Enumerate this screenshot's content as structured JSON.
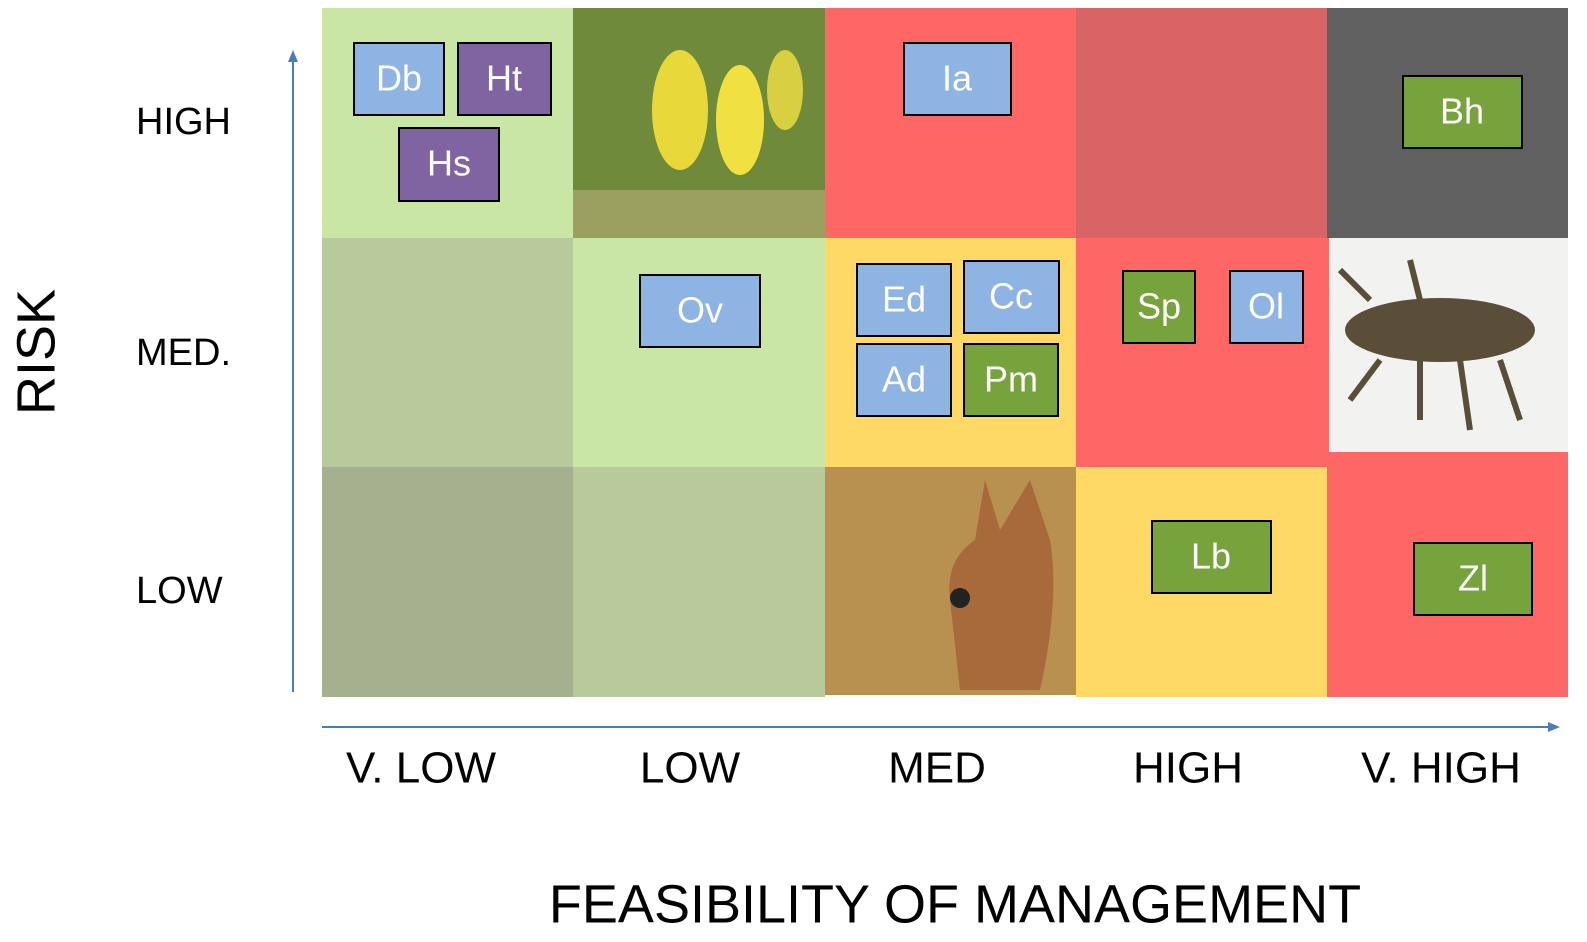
{
  "y_axis": {
    "title": "RISK",
    "labels": [
      "HIGH",
      "MED.",
      "LOW"
    ]
  },
  "x_axis": {
    "title": "FEASIBILITY OF MANAGEMENT",
    "labels": [
      "V. LOW",
      "LOW",
      "MED",
      "HIGH",
      "V. HIGH"
    ]
  },
  "species": [
    "Db",
    "Ht",
    "Hs",
    "Ia",
    "Bh",
    "Ov",
    "Ed",
    "Cc",
    "Ad",
    "Pm",
    "Sp",
    "Ol",
    "Lb",
    "Zl"
  ]
}
